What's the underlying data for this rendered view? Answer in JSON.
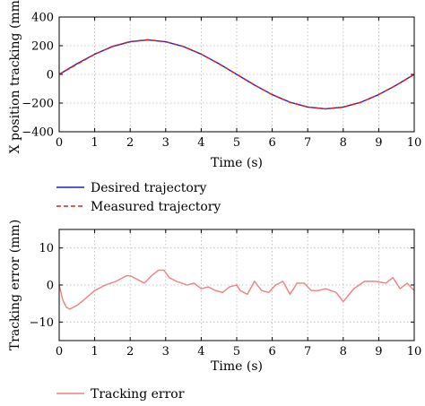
{
  "chart_data": [
    {
      "type": "line",
      "title": "",
      "xlabel": "Time (s)",
      "ylabel": "X position tracking (mm)",
      "xlim": [
        0,
        10
      ],
      "ylim": [
        -400,
        400
      ],
      "xticks": [
        0,
        1,
        2,
        3,
        4,
        5,
        6,
        7,
        8,
        9,
        10
      ],
      "yticks": [
        -400,
        -200,
        0,
        200,
        400
      ],
      "grid": true,
      "legend": "below",
      "x": [
        0,
        0.5,
        1,
        1.5,
        2,
        2.5,
        3,
        3.5,
        4,
        4.5,
        5,
        5.5,
        6,
        6.5,
        7,
        7.5,
        8,
        8.5,
        9,
        9.5,
        10
      ],
      "series": [
        {
          "name": "Desired trajectory",
          "color": "#1f1fbf",
          "style": "solid",
          "values": [
            0,
            74,
            141,
            194,
            228,
            240,
            228,
            194,
            141,
            74,
            0,
            -74,
            -141,
            -194,
            -228,
            -240,
            -228,
            -194,
            -141,
            -74,
            0
          ]
        },
        {
          "name": "Measured trajectory",
          "color": "#e02020",
          "style": "dashed",
          "values": [
            0,
            70,
            140,
            196,
            229,
            242,
            227,
            195,
            142,
            73,
            1,
            -73,
            -142,
            -195,
            -227,
            -241,
            -229,
            -195,
            -140,
            -75,
            0
          ]
        }
      ]
    },
    {
      "type": "line",
      "title": "",
      "xlabel": "Time (s)",
      "ylabel": "Tracking error (mm)",
      "xlim": [
        0,
        10
      ],
      "ylim": [
        -15,
        15
      ],
      "xticks": [
        0,
        1,
        2,
        3,
        4,
        5,
        6,
        7,
        8,
        9,
        10
      ],
      "yticks": [
        -10,
        0,
        10
      ],
      "grid": true,
      "legend": "below",
      "x": [
        0,
        0.1,
        0.2,
        0.3,
        0.5,
        0.7,
        1.0,
        1.3,
        1.6,
        1.9,
        2.0,
        2.2,
        2.4,
        2.6,
        2.8,
        2.95,
        3.1,
        3.3,
        3.6,
        3.8,
        4.0,
        4.2,
        4.4,
        4.6,
        4.8,
        5.0,
        5.1,
        5.3,
        5.5,
        5.7,
        5.9,
        6.1,
        6.3,
        6.5,
        6.7,
        6.9,
        7.1,
        7.3,
        7.5,
        7.8,
        8.0,
        8.3,
        8.6,
        8.9,
        9.2,
        9.4,
        9.6,
        9.8,
        10.0
      ],
      "series": [
        {
          "name": "Tracking error",
          "color": "#f08080",
          "style": "solid",
          "values": [
            0,
            -4,
            -6,
            -6.5,
            -5.5,
            -4,
            -1.5,
            0,
            1,
            2.5,
            2.5,
            1.5,
            0.5,
            2.5,
            4,
            4,
            2,
            1,
            0,
            0.5,
            -1,
            -0.5,
            -1.5,
            -2,
            -0.5,
            0,
            -1.5,
            -2.5,
            1,
            -1.5,
            -2,
            0,
            1,
            -2.5,
            0.5,
            0.5,
            -1.5,
            -1.5,
            -1,
            -2,
            -4.5,
            -1,
            1,
            1,
            0.5,
            2,
            -1,
            0.5,
            -1.5
          ]
        }
      ]
    }
  ]
}
